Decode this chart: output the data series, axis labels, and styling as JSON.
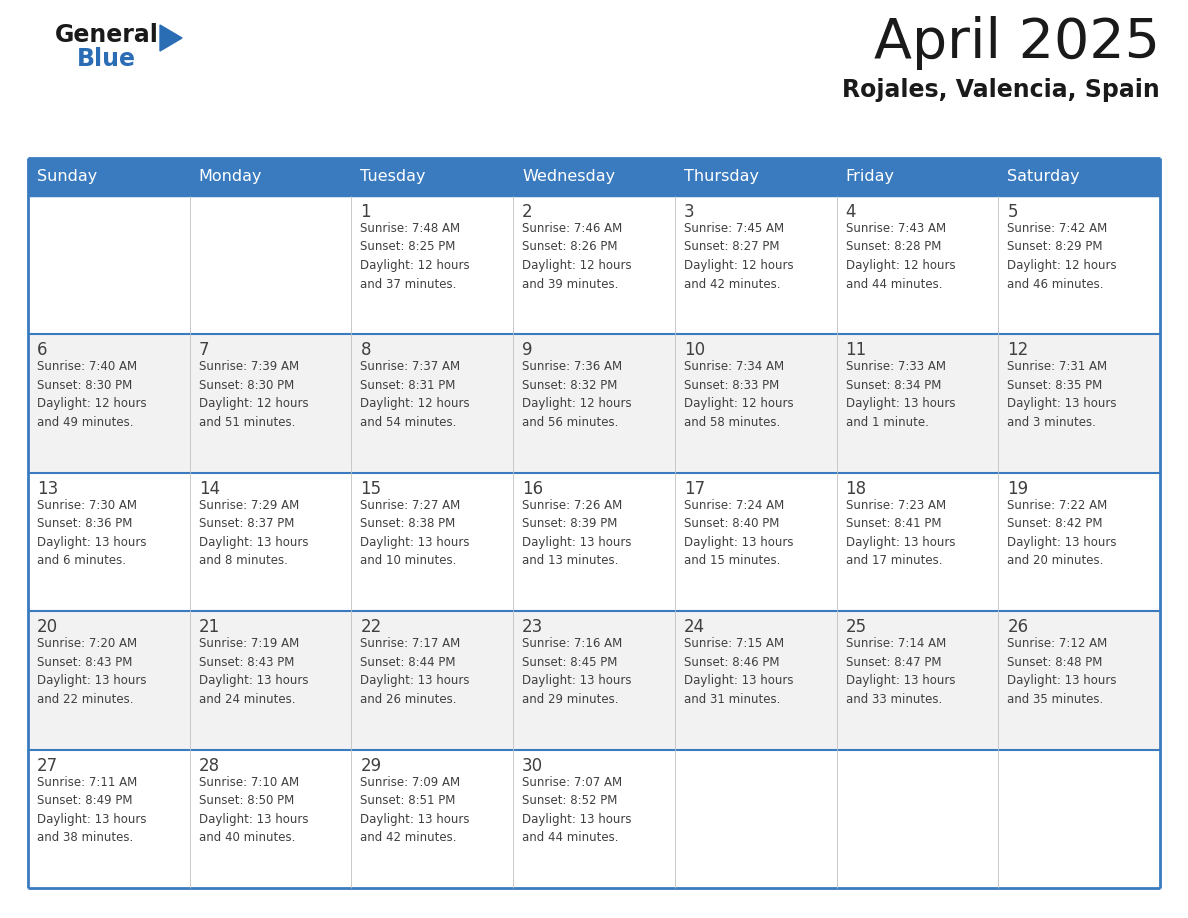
{
  "title": "April 2025",
  "subtitle": "Rojales, Valencia, Spain",
  "header_color": "#3a7bbf",
  "header_text_color": "#ffffff",
  "cell_bg_white": "#ffffff",
  "cell_bg_gray": "#f2f2f2",
  "border_color": "#3a7bbf",
  "text_color": "#404040",
  "title_color": "#1a1a1a",
  "days_of_week": [
    "Sunday",
    "Monday",
    "Tuesday",
    "Wednesday",
    "Thursday",
    "Friday",
    "Saturday"
  ],
  "calendar_data": [
    [
      {
        "day": "",
        "info": ""
      },
      {
        "day": "",
        "info": ""
      },
      {
        "day": "1",
        "info": "Sunrise: 7:48 AM\nSunset: 8:25 PM\nDaylight: 12 hours\nand 37 minutes."
      },
      {
        "day": "2",
        "info": "Sunrise: 7:46 AM\nSunset: 8:26 PM\nDaylight: 12 hours\nand 39 minutes."
      },
      {
        "day": "3",
        "info": "Sunrise: 7:45 AM\nSunset: 8:27 PM\nDaylight: 12 hours\nand 42 minutes."
      },
      {
        "day": "4",
        "info": "Sunrise: 7:43 AM\nSunset: 8:28 PM\nDaylight: 12 hours\nand 44 minutes."
      },
      {
        "day": "5",
        "info": "Sunrise: 7:42 AM\nSunset: 8:29 PM\nDaylight: 12 hours\nand 46 minutes."
      }
    ],
    [
      {
        "day": "6",
        "info": "Sunrise: 7:40 AM\nSunset: 8:30 PM\nDaylight: 12 hours\nand 49 minutes."
      },
      {
        "day": "7",
        "info": "Sunrise: 7:39 AM\nSunset: 8:30 PM\nDaylight: 12 hours\nand 51 minutes."
      },
      {
        "day": "8",
        "info": "Sunrise: 7:37 AM\nSunset: 8:31 PM\nDaylight: 12 hours\nand 54 minutes."
      },
      {
        "day": "9",
        "info": "Sunrise: 7:36 AM\nSunset: 8:32 PM\nDaylight: 12 hours\nand 56 minutes."
      },
      {
        "day": "10",
        "info": "Sunrise: 7:34 AM\nSunset: 8:33 PM\nDaylight: 12 hours\nand 58 minutes."
      },
      {
        "day": "11",
        "info": "Sunrise: 7:33 AM\nSunset: 8:34 PM\nDaylight: 13 hours\nand 1 minute."
      },
      {
        "day": "12",
        "info": "Sunrise: 7:31 AM\nSunset: 8:35 PM\nDaylight: 13 hours\nand 3 minutes."
      }
    ],
    [
      {
        "day": "13",
        "info": "Sunrise: 7:30 AM\nSunset: 8:36 PM\nDaylight: 13 hours\nand 6 minutes."
      },
      {
        "day": "14",
        "info": "Sunrise: 7:29 AM\nSunset: 8:37 PM\nDaylight: 13 hours\nand 8 minutes."
      },
      {
        "day": "15",
        "info": "Sunrise: 7:27 AM\nSunset: 8:38 PM\nDaylight: 13 hours\nand 10 minutes."
      },
      {
        "day": "16",
        "info": "Sunrise: 7:26 AM\nSunset: 8:39 PM\nDaylight: 13 hours\nand 13 minutes."
      },
      {
        "day": "17",
        "info": "Sunrise: 7:24 AM\nSunset: 8:40 PM\nDaylight: 13 hours\nand 15 minutes."
      },
      {
        "day": "18",
        "info": "Sunrise: 7:23 AM\nSunset: 8:41 PM\nDaylight: 13 hours\nand 17 minutes."
      },
      {
        "day": "19",
        "info": "Sunrise: 7:22 AM\nSunset: 8:42 PM\nDaylight: 13 hours\nand 20 minutes."
      }
    ],
    [
      {
        "day": "20",
        "info": "Sunrise: 7:20 AM\nSunset: 8:43 PM\nDaylight: 13 hours\nand 22 minutes."
      },
      {
        "day": "21",
        "info": "Sunrise: 7:19 AM\nSunset: 8:43 PM\nDaylight: 13 hours\nand 24 minutes."
      },
      {
        "day": "22",
        "info": "Sunrise: 7:17 AM\nSunset: 8:44 PM\nDaylight: 13 hours\nand 26 minutes."
      },
      {
        "day": "23",
        "info": "Sunrise: 7:16 AM\nSunset: 8:45 PM\nDaylight: 13 hours\nand 29 minutes."
      },
      {
        "day": "24",
        "info": "Sunrise: 7:15 AM\nSunset: 8:46 PM\nDaylight: 13 hours\nand 31 minutes."
      },
      {
        "day": "25",
        "info": "Sunrise: 7:14 AM\nSunset: 8:47 PM\nDaylight: 13 hours\nand 33 minutes."
      },
      {
        "day": "26",
        "info": "Sunrise: 7:12 AM\nSunset: 8:48 PM\nDaylight: 13 hours\nand 35 minutes."
      }
    ],
    [
      {
        "day": "27",
        "info": "Sunrise: 7:11 AM\nSunset: 8:49 PM\nDaylight: 13 hours\nand 38 minutes."
      },
      {
        "day": "28",
        "info": "Sunrise: 7:10 AM\nSunset: 8:50 PM\nDaylight: 13 hours\nand 40 minutes."
      },
      {
        "day": "29",
        "info": "Sunrise: 7:09 AM\nSunset: 8:51 PM\nDaylight: 13 hours\nand 42 minutes."
      },
      {
        "day": "30",
        "info": "Sunrise: 7:07 AM\nSunset: 8:52 PM\nDaylight: 13 hours\nand 44 minutes."
      },
      {
        "day": "",
        "info": ""
      },
      {
        "day": "",
        "info": ""
      },
      {
        "day": "",
        "info": ""
      }
    ]
  ]
}
